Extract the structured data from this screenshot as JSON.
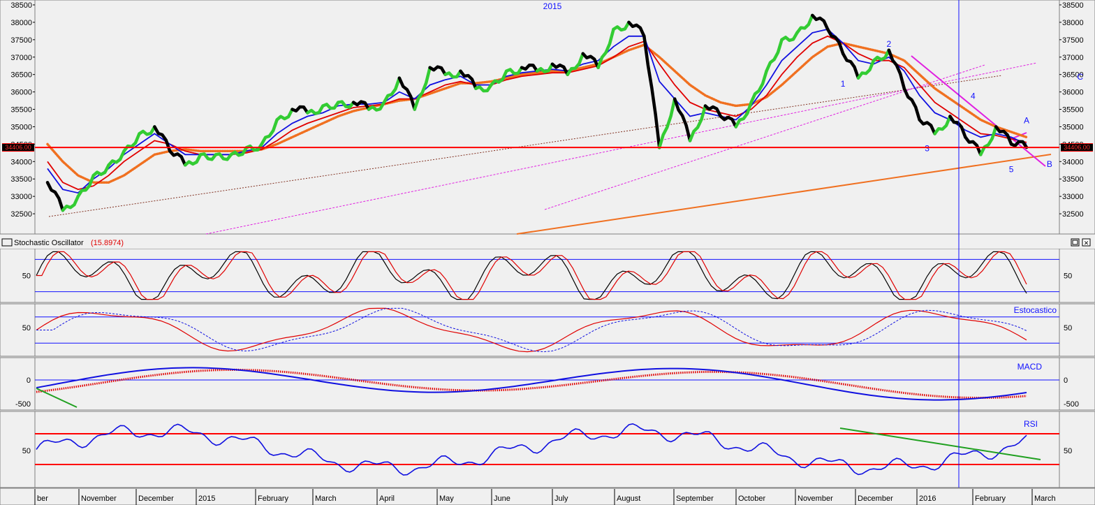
{
  "chart_data": {
    "type": "line",
    "main_panel": {
      "year_label": "2015",
      "y_ticks": [
        38500,
        38000,
        37500,
        37000,
        36500,
        36000,
        35500,
        35000,
        34500,
        34000,
        33500,
        33000,
        32500
      ],
      "ylim": [
        32000,
        38600
      ],
      "current_price_label": "34406.00",
      "current_price": 34406,
      "wave_labels": [
        {
          "text": "1",
          "x_week": 52,
          "y": 36150
        },
        {
          "text": "2",
          "x_week": 55,
          "y": 37300
        },
        {
          "text": "3",
          "x_week": 57.5,
          "y": 34300
        },
        {
          "text": "4",
          "x_week": 60.5,
          "y": 35800
        },
        {
          "text": "5",
          "x_week": 63,
          "y": 33700
        },
        {
          "text": "A",
          "x_week": 64,
          "y": 35100
        },
        {
          "text": "B",
          "x_week": 65.5,
          "y": 33850
        },
        {
          "text": "C",
          "x_week": 67.5,
          "y": 36350
        }
      ],
      "price_series": [
        33400,
        32600,
        33000,
        33600,
        33900,
        34300,
        34800,
        35000,
        34300,
        33900,
        34200,
        34200,
        34200,
        34400,
        34500,
        35200,
        35500,
        35400,
        35600,
        35700,
        35700,
        35500,
        35700,
        36400,
        35500,
        36700,
        36500,
        36600,
        36100,
        36200,
        36600,
        36700,
        36600,
        36800,
        36500,
        37100,
        36700,
        37800,
        38000,
        37600,
        34400,
        35800,
        34600,
        35600,
        35300,
        35000,
        35700,
        36600,
        37500,
        37700,
        38200,
        37800,
        37100,
        36400,
        36900,
        37200,
        36100,
        35200,
        34800,
        35300,
        34700,
        34200,
        35000,
        34500,
        34406
      ],
      "sma_short": [
        33800,
        33200,
        33100,
        33500,
        33800,
        34200,
        34500,
        34800,
        34500,
        34200,
        34200,
        34200,
        34200,
        34300,
        34400,
        34800,
        35100,
        35300,
        35400,
        35600,
        35650,
        35650,
        35700,
        36000,
        35800,
        36200,
        36350,
        36450,
        36200,
        36200,
        36450,
        36550,
        36600,
        36650,
        36600,
        36800,
        36900,
        37300,
        37600,
        37600,
        36300,
        35800,
        35300,
        35400,
        35300,
        35200,
        35600,
        36200,
        36900,
        37300,
        37700,
        37800,
        37400,
        36900,
        36800,
        37000,
        36600,
        35900,
        35400,
        35200,
        34900,
        34700,
        34800,
        34700,
        34500
      ],
      "sma_mid": [
        34000,
        33400,
        33200,
        33300,
        33600,
        34000,
        34300,
        34600,
        34500,
        34300,
        34200,
        34200,
        34200,
        34250,
        34350,
        34600,
        34900,
        35100,
        35250,
        35400,
        35550,
        35600,
        35650,
        35800,
        35800,
        36000,
        36200,
        36300,
        36200,
        36200,
        36350,
        36450,
        36500,
        36550,
        36550,
        36650,
        36750,
        37000,
        37300,
        37450,
        36800,
        36200,
        35700,
        35500,
        35400,
        35300,
        35500,
        35900,
        36500,
        37000,
        37400,
        37600,
        37400,
        37100,
        36900,
        36900,
        36700,
        36200,
        35700,
        35400,
        35100,
        34800,
        34750,
        34650,
        34550
      ],
      "ema_long": [
        34500,
        34000,
        33600,
        33400,
        33400,
        33600,
        33900,
        34200,
        34300,
        34350,
        34300,
        34300,
        34300,
        34300,
        34350,
        34500,
        34700,
        34900,
        35100,
        35300,
        35450,
        35550,
        35650,
        35750,
        35800,
        35950,
        36100,
        36250,
        36250,
        36300,
        36400,
        36500,
        36550,
        36600,
        36600,
        36700,
        36800,
        37000,
        37200,
        37350,
        37000,
        36600,
        36200,
        35900,
        35700,
        35600,
        35650,
        35850,
        36200,
        36600,
        37000,
        37300,
        37400,
        37300,
        37200,
        37100,
        36900,
        36500,
        36100,
        35800,
        35500,
        35200,
        35000,
        34850,
        34700
      ],
      "trendlines_note": "dashed and solid trendlines as drawn"
    },
    "x_labels": [
      "ber",
      "November",
      "December",
      "2015",
      "February",
      "March",
      "April",
      "May",
      "June",
      "July",
      "August",
      "September",
      "October",
      "November",
      "December",
      "2016",
      "February",
      "March"
    ],
    "stochastic_panel": {
      "title": "Stochastic Oscillator",
      "value_label": "(15.8974)",
      "y_ticks": [
        50
      ],
      "levels": [
        80,
        20
      ]
    },
    "estocastico_panel": {
      "title": "Estocastico",
      "y_ticks": [
        50
      ],
      "levels": [
        80,
        20
      ]
    },
    "macd_panel": {
      "title": "MACD",
      "y_ticks": [
        0,
        -500
      ]
    },
    "rsi_panel": {
      "title": "RSI",
      "y_ticks": [
        50
      ],
      "levels": [
        70,
        30
      ]
    }
  },
  "colors": {
    "background": "#f0f0f0",
    "up_price": "#33cc33",
    "down_price": "#000000",
    "sma_short": "#1010e0",
    "sma_mid": "#e00000",
    "ema_long": "#f07020",
    "trend_orange": "#f07020",
    "trend_magenta": "#e020e0",
    "trend_brown": "#803020",
    "grid_blue": "#1010ff",
    "level_red": "#ff0000"
  }
}
